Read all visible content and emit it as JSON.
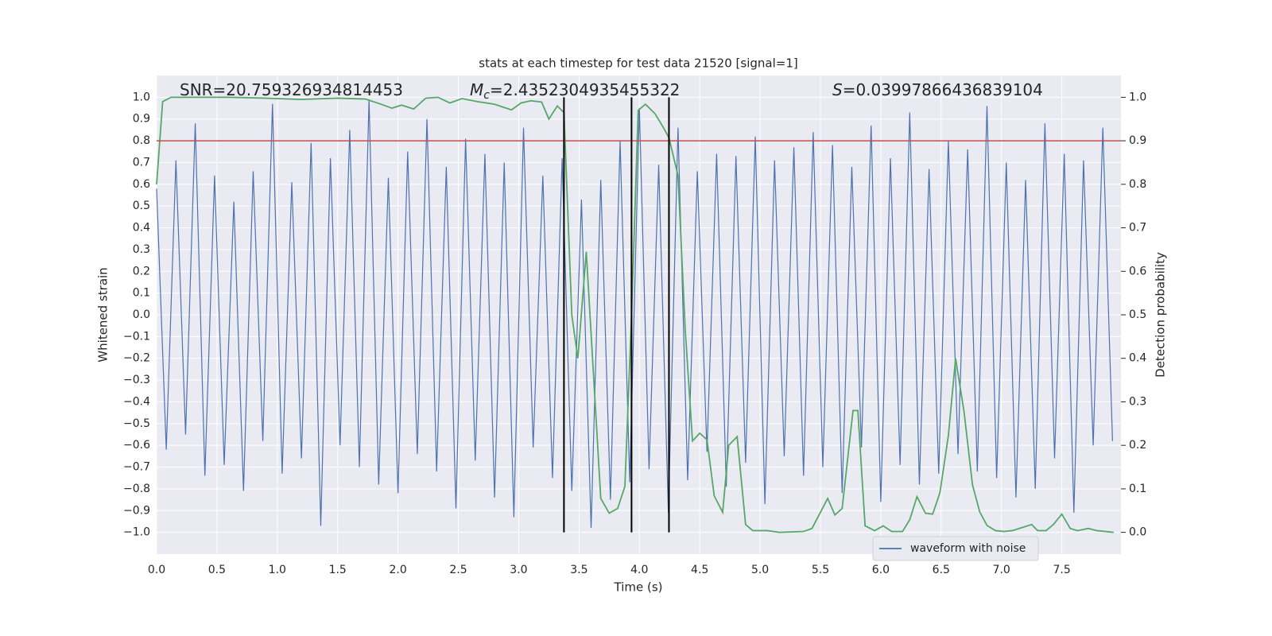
{
  "chart_data": {
    "type": "line",
    "title": "stats at each timestep for test data 21520 [signal=1]",
    "xlabel": "Time (s)",
    "ylabel": "Whitened strain",
    "y2label": "Detection probability",
    "xlim": [
      0,
      7.99
    ],
    "ylim": [
      -1.1,
      1.1
    ],
    "y2lim": [
      -0.05,
      1.05
    ],
    "grid": true,
    "legend": "lower right",
    "xticks": [
      {
        "value": 0,
        "label": "0.0"
      },
      0.5,
      {
        "value": 1,
        "label": "1.0"
      },
      1.5,
      {
        "value": 2,
        "label": "2.0"
      },
      2.5,
      {
        "value": 3,
        "label": "3.0"
      },
      3.5,
      {
        "value": 4,
        "label": "4.0"
      },
      4.5,
      {
        "value": 5,
        "label": "5.0"
      },
      5.5,
      {
        "value": 6,
        "label": "6.0"
      },
      6.5,
      {
        "value": 7,
        "label": "7.0"
      },
      7.5
    ],
    "yticks": [
      {
        "value": -1,
        "label": "−1.0"
      },
      {
        "value": -0.9,
        "label": "−0.9"
      },
      {
        "value": -0.8,
        "label": "−0.8"
      },
      {
        "value": -0.7,
        "label": "−0.7"
      },
      {
        "value": -0.6,
        "label": "−0.6"
      },
      {
        "value": -0.5,
        "label": "−0.5"
      },
      {
        "value": -0.4,
        "label": "−0.4"
      },
      {
        "value": -0.3,
        "label": "−0.3"
      },
      {
        "value": -0.2,
        "label": "−0.2"
      },
      {
        "value": -0.1,
        "label": "−0.1"
      },
      {
        "value": 0,
        "label": "0.0"
      },
      0.1,
      0.2,
      0.3,
      0.4,
      0.5,
      0.6,
      0.7,
      0.8,
      0.9,
      {
        "value": 1,
        "label": "1.0"
      }
    ],
    "y2ticks": [
      {
        "value": 0,
        "label": "0.0"
      },
      0.1,
      0.2,
      0.3,
      0.4,
      0.5,
      0.6,
      0.7,
      0.8,
      0.9,
      {
        "value": 1,
        "label": "1.0"
      }
    ],
    "series": [
      {
        "name": "waveform with noise",
        "color": "#4c72b0",
        "axis": "y",
        "x": [
          0,
          0.08,
          0.16,
          0.24,
          0.32,
          0.4,
          0.48,
          0.56,
          0.64,
          0.72,
          0.8,
          0.88,
          0.96,
          1.04,
          1.12,
          1.2,
          1.28,
          1.36,
          1.44,
          1.52,
          1.6,
          1.68,
          1.76,
          1.84,
          1.92,
          2.0,
          2.08,
          2.16,
          2.24,
          2.32,
          2.4,
          2.48,
          2.56,
          2.64,
          2.72,
          2.8,
          2.88,
          2.96,
          3.04,
          3.12,
          3.2,
          3.28,
          3.36,
          3.44,
          3.52,
          3.6,
          3.68,
          3.76,
          3.84,
          3.92,
          4.0,
          4.08,
          4.16,
          4.24,
          4.32,
          4.4,
          4.48,
          4.56,
          4.64,
          4.72,
          4.8,
          4.88,
          4.96,
          5.04,
          5.12,
          5.2,
          5.28,
          5.36,
          5.44,
          5.52,
          5.6,
          5.68,
          5.76,
          5.84,
          5.92,
          6.0,
          6.08,
          6.16,
          6.24,
          6.32,
          6.4,
          6.48,
          6.56,
          6.64,
          6.72,
          6.8,
          6.88,
          6.96,
          7.04,
          7.12,
          7.2,
          7.28,
          7.36,
          7.44,
          7.52,
          7.6,
          7.68,
          7.76,
          7.84,
          7.92
        ],
        "values": [
          0.58,
          -0.62,
          0.71,
          -0.55,
          0.88,
          -0.74,
          0.64,
          -0.69,
          0.52,
          -0.81,
          0.66,
          -0.58,
          0.97,
          -0.73,
          0.61,
          -0.66,
          0.79,
          -0.97,
          0.72,
          -0.6,
          0.85,
          -0.7,
          0.99,
          -0.78,
          0.63,
          -0.82,
          0.75,
          -0.64,
          0.9,
          -0.72,
          0.68,
          -0.89,
          0.81,
          -0.67,
          0.74,
          -0.84,
          0.7,
          -0.93,
          0.86,
          -0.61,
          0.64,
          -0.75,
          0.72,
          -0.81,
          0.53,
          -0.98,
          0.62,
          -0.85,
          0.8,
          -0.77,
          0.95,
          -0.71,
          0.69,
          -0.91,
          0.86,
          -0.76,
          0.66,
          -0.63,
          0.74,
          -0.79,
          0.73,
          -0.68,
          0.82,
          -0.87,
          0.71,
          -0.65,
          0.77,
          -0.74,
          0.84,
          -0.7,
          0.78,
          -0.82,
          0.68,
          -0.61,
          0.87,
          -0.86,
          0.72,
          -0.69,
          0.93,
          -0.78,
          0.67,
          -0.73,
          0.8,
          -0.64,
          0.76,
          -0.72,
          0.96,
          -0.75,
          0.7,
          -0.84,
          0.62,
          -0.8,
          0.88,
          -0.66,
          0.74,
          -0.91,
          0.71,
          -0.6,
          0.86,
          -0.58
        ]
      },
      {
        "color": "#55a868",
        "axis": "y2",
        "x": [
          0,
          0.05,
          0.12,
          0.3,
          0.6,
          0.9,
          1.2,
          1.5,
          1.73,
          1.85,
          1.95,
          2.03,
          2.13,
          2.23,
          2.33,
          2.43,
          2.53,
          2.66,
          2.8,
          2.94,
          3.02,
          3.1,
          3.19,
          3.25,
          3.32,
          3.375,
          3.44,
          3.49,
          3.56,
          3.68,
          3.75,
          3.82,
          3.88,
          3.935,
          3.99,
          4.05,
          4.13,
          4.2,
          4.245,
          4.32,
          4.38,
          4.44,
          4.5,
          4.56,
          4.62,
          4.69,
          4.74,
          4.81,
          4.88,
          4.94,
          5.06,
          5.16,
          5.36,
          5.43,
          5.5,
          5.56,
          5.62,
          5.68,
          5.77,
          5.81,
          5.87,
          5.95,
          6.02,
          6.09,
          6.18,
          6.24,
          6.3,
          6.37,
          6.43,
          6.49,
          6.56,
          6.62,
          6.69,
          6.76,
          6.82,
          6.88,
          6.95,
          7.02,
          7.09,
          7.17,
          7.25,
          7.3,
          7.37,
          7.43,
          7.5,
          7.57,
          7.63,
          7.72,
          7.79,
          7.93
        ],
        "values": [
          0.8,
          0.99,
          1.0,
          1.0,
          1.0,
          0.998,
          0.995,
          0.998,
          0.996,
          0.985,
          0.975,
          0.982,
          0.973,
          0.998,
          1.0,
          0.987,
          0.997,
          0.99,
          0.984,
          0.971,
          0.987,
          0.992,
          0.989,
          0.95,
          0.98,
          0.965,
          0.5,
          0.4,
          0.645,
          0.078,
          0.044,
          0.055,
          0.106,
          0.5,
          0.97,
          0.984,
          0.962,
          0.93,
          0.907,
          0.82,
          0.465,
          0.21,
          0.228,
          0.213,
          0.084,
          0.046,
          0.2,
          0.22,
          0.018,
          0.004,
          0.004,
          0.0,
          0.002,
          0.009,
          0.046,
          0.078,
          0.04,
          0.055,
          0.28,
          0.28,
          0.015,
          0.004,
          0.015,
          0.002,
          0.002,
          0.029,
          0.082,
          0.044,
          0.042,
          0.091,
          0.222,
          0.4,
          0.277,
          0.109,
          0.047,
          0.016,
          0.004,
          0.002,
          0.004,
          0.011,
          0.018,
          0.004,
          0.004,
          0.018,
          0.042,
          0.009,
          0.004,
          0.009,
          0.004,
          0.0
        ]
      }
    ],
    "hlines": [
      {
        "value": 0.9,
        "axis": "y2",
        "color": "#c44e52"
      }
    ],
    "vlines": [
      {
        "value": 3.375,
        "color": "#000000"
      },
      {
        "value": 3.935,
        "color": "#000000"
      },
      {
        "value": 4.245,
        "color": "#000000"
      }
    ],
    "annotations": [
      {
        "text": "SNR=20.759326934814453"
      },
      {
        "symbol": "M",
        "subscript": "c",
        "text": "=2.4352304935455322"
      },
      {
        "symbol": "S",
        "text": "=0.03997866436839104"
      }
    ]
  }
}
